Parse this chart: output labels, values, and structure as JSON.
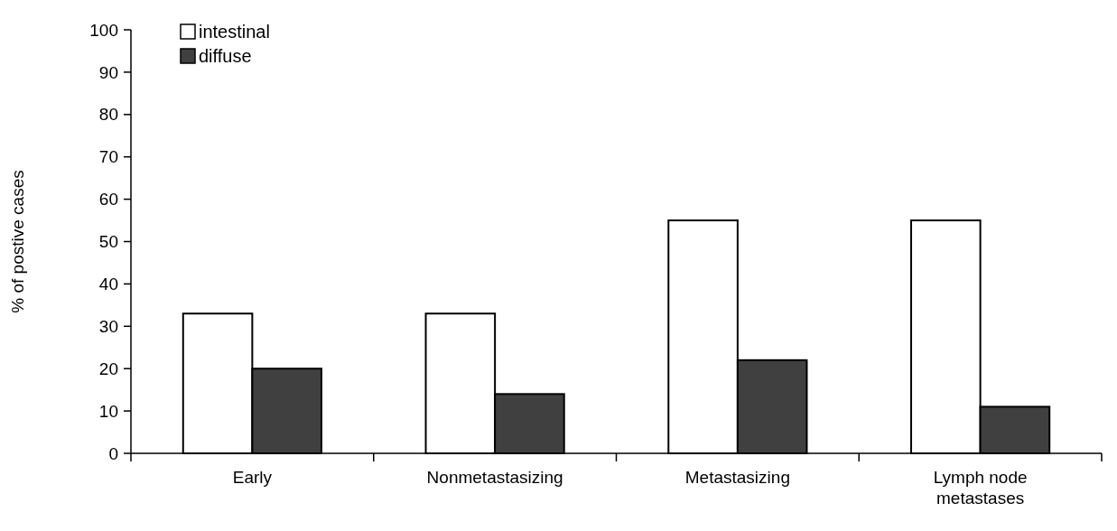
{
  "chart_data": {
    "type": "bar",
    "ylabel": "% of postive cases",
    "categories": [
      "Early",
      "Nonmetastasizing",
      "Metastasizing",
      "Lymph node metastases"
    ],
    "series": [
      {
        "name": "intestinal",
        "color": "#ffffff",
        "values": [
          33,
          33,
          55,
          55
        ]
      },
      {
        "name": "diffuse",
        "color": "#404040",
        "values": [
          20,
          14,
          22,
          11
        ]
      }
    ],
    "ylim": [
      0,
      100
    ],
    "yticks": [
      0,
      10,
      20,
      30,
      40,
      50,
      60,
      70,
      80,
      90,
      100
    ],
    "grid": false,
    "legend": "top left"
  }
}
